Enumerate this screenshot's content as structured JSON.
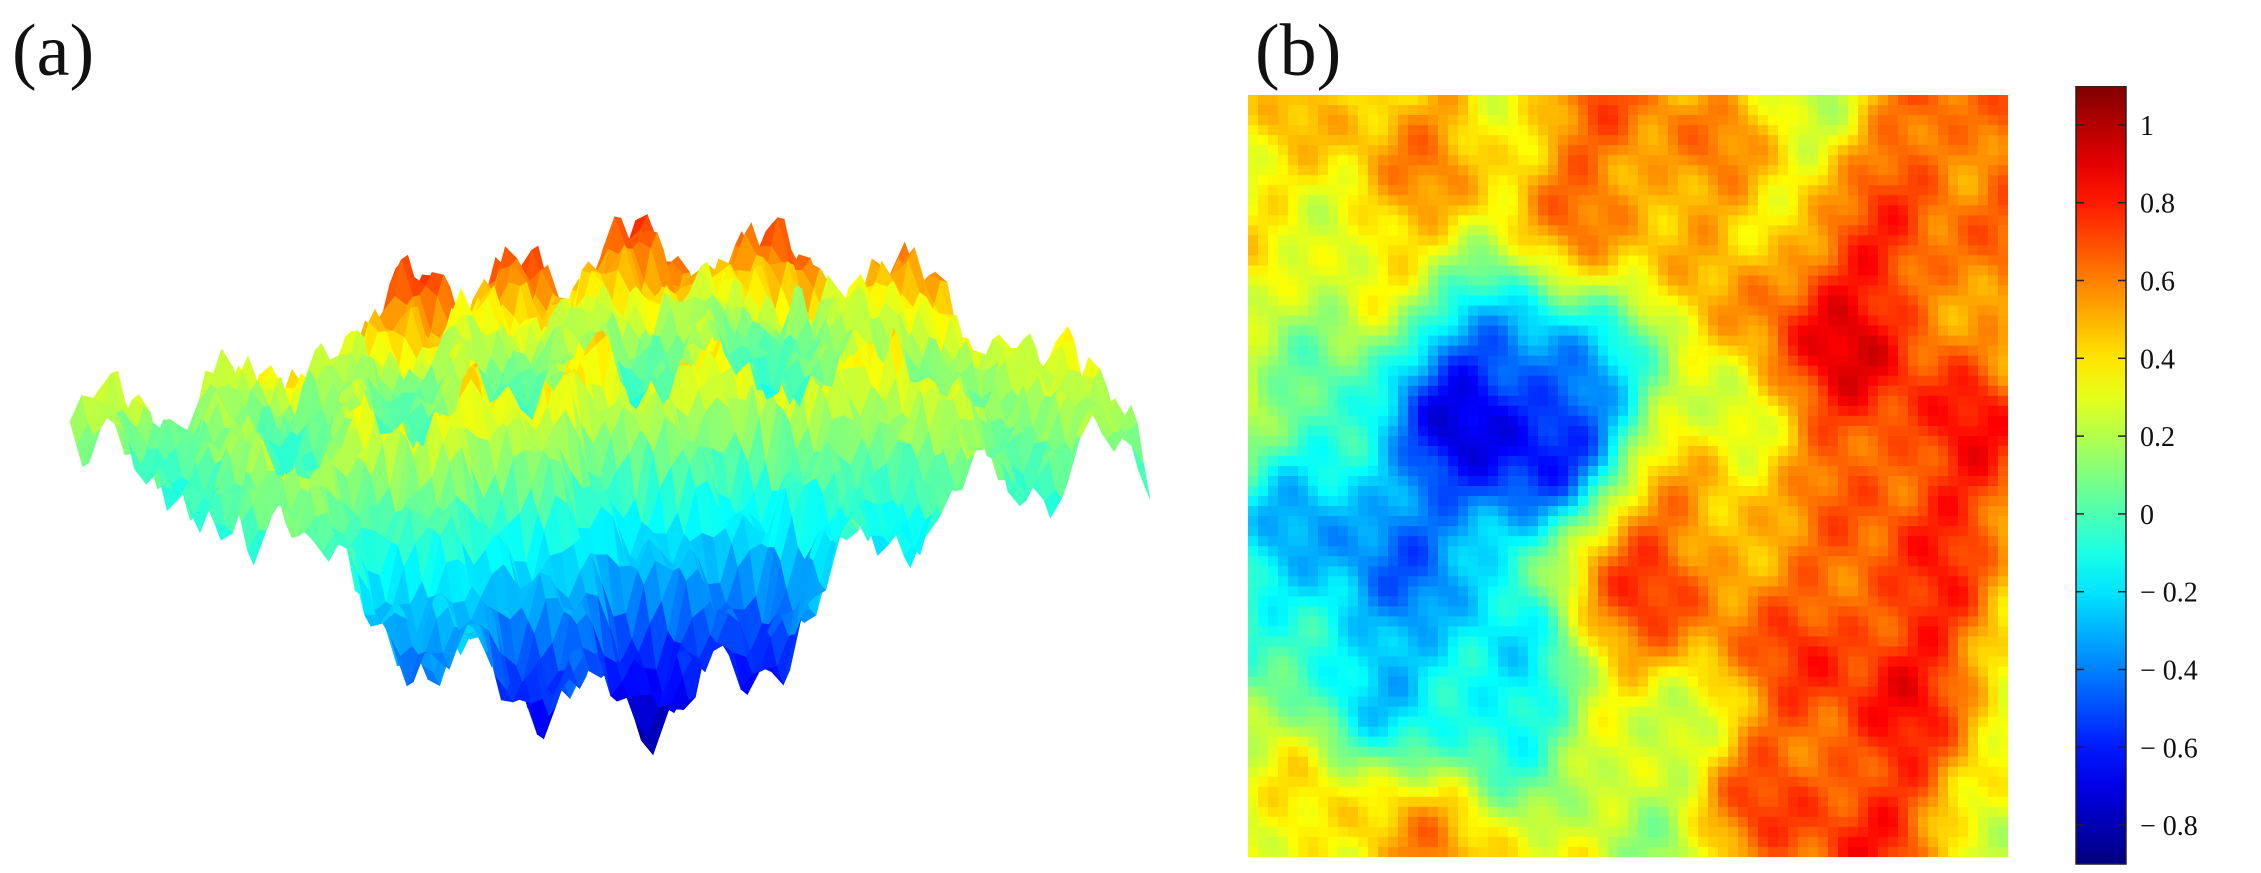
{
  "panels": [
    {
      "label": "(a)"
    },
    {
      "label": "(b)"
    }
  ],
  "chart_data": [
    {
      "panel": "(a)",
      "type": "surface",
      "colormap": "jet",
      "z_range": [
        -0.8,
        1.0
      ],
      "axes_visible": false,
      "grid": false
    },
    {
      "panel": "(b)",
      "type": "heatmap",
      "colormap": "jet",
      "x_range": [
        0,
        1
      ],
      "y_range": [
        0,
        1
      ],
      "color_range": [
        -0.9,
        1.1
      ],
      "features": [
        {
          "x": 0.34,
          "y": 0.43,
          "value": -0.85
        },
        {
          "x": 0.15,
          "y": 0.6,
          "value": -0.45
        },
        {
          "x": 0.25,
          "y": 0.8,
          "value": -0.35
        },
        {
          "x": 0.8,
          "y": 0.3,
          "value": 0.95
        },
        {
          "x": 0.9,
          "y": 0.48,
          "value": 0.9
        },
        {
          "x": 0.83,
          "y": 0.72,
          "value": 0.92
        },
        {
          "x": 0.78,
          "y": 0.92,
          "value": 0.88
        },
        {
          "x": 0.95,
          "y": 0.08,
          "value": 0.8
        },
        {
          "x": 0.5,
          "y": 0.08,
          "value": 0.72
        },
        {
          "x": 0.2,
          "y": 0.07,
          "value": 0.55
        },
        {
          "x": 0.22,
          "y": 0.96,
          "value": 0.6
        },
        {
          "x": 0.55,
          "y": 0.63,
          "value": 0.8
        }
      ]
    }
  ],
  "colorbar": {
    "min": -0.9,
    "max": 1.1,
    "ticks": [
      {
        "value": 1,
        "label": "1"
      },
      {
        "value": 0.8,
        "label": "0.8"
      },
      {
        "value": 0.6,
        "label": "0.6"
      },
      {
        "value": 0.4,
        "label": "0.4"
      },
      {
        "value": 0.2,
        "label": "0.2"
      },
      {
        "value": 0,
        "label": "0"
      },
      {
        "value": -0.2,
        "label": "− 0.2"
      },
      {
        "value": -0.4,
        "label": "− 0.4"
      },
      {
        "value": -0.6,
        "label": "− 0.6"
      },
      {
        "value": -0.8,
        "label": "− 0.8"
      }
    ]
  }
}
